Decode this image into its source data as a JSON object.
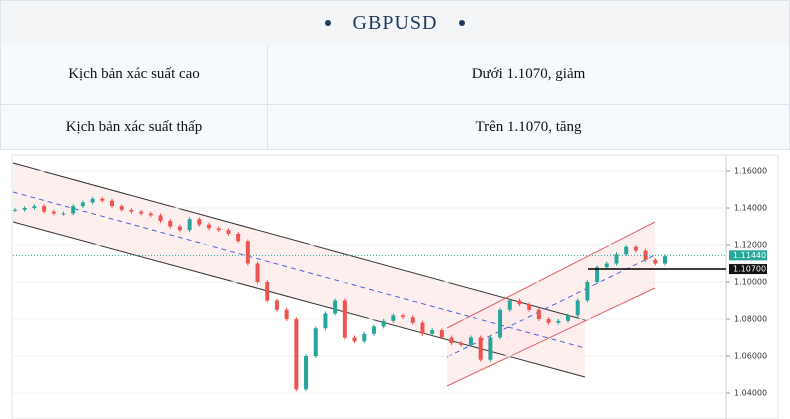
{
  "header": {
    "title": "GBPUSD"
  },
  "table": {
    "rows": [
      [
        "Kịch bản xác suất cao",
        "Dưới 1.1070, giảm"
      ],
      [
        "Kịch bản xác suất thấp",
        "Trên 1.1070, tăng"
      ]
    ]
  },
  "chart_data": {
    "type": "candlestick",
    "values": [
      1.139,
      1.14,
      1.141,
      1.138,
      1.137,
      1.137,
      1.141,
      1.143,
      1.145,
      1.144,
      1.141,
      1.139,
      1.138,
      1.137,
      1.136,
      1.133,
      1.13,
      1.128,
      1.134,
      1.131,
      1.129,
      1.128,
      1.126,
      1.122,
      1.11,
      1.1,
      1.09,
      1.085,
      1.08,
      1.042,
      1.06,
      1.075,
      1.083,
      1.09,
      1.07,
      1.068,
      1.072,
      1.076,
      1.079,
      1.082,
      1.081,
      1.078,
      1.072,
      1.074,
      1.07,
      1.067,
      1.066,
      1.07,
      1.058,
      1.07,
      1.085,
      1.09,
      1.088,
      1.085,
      1.08,
      1.078,
      1.079,
      1.082,
      1.09,
      1.1,
      1.108,
      1.11,
      1.115,
      1.119,
      1.117,
      1.112,
      1.11,
      1.114
    ],
    "ylim": [
      1.03,
      1.17
    ],
    "yticks": [
      {
        "value": 1.16,
        "label": "1.16000"
      },
      {
        "value": 1.14,
        "label": "1.14000"
      },
      {
        "value": 1.12,
        "label": "1.12000"
      },
      {
        "value": 1.1,
        "label": "1.10000"
      },
      {
        "value": 1.08,
        "label": "1.08000"
      },
      {
        "value": 1.06,
        "label": "1.06000"
      },
      {
        "value": 1.04,
        "label": "1.04000"
      }
    ],
    "price_labels": [
      {
        "value": 1.1144,
        "label": "1.11440"
      },
      {
        "value": 1.107,
        "label": "1.10700"
      }
    ]
  }
}
